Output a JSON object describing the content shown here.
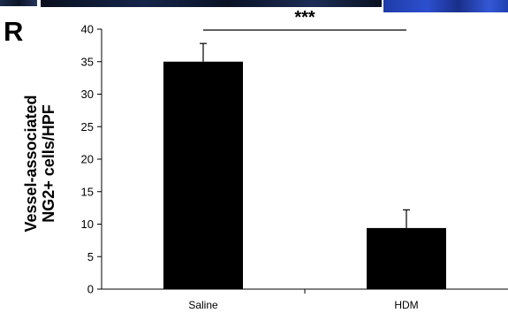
{
  "panel_label": "R",
  "chart_data": {
    "type": "bar",
    "categories": [
      "Saline",
      "HDM"
    ],
    "values": [
      35.0,
      9.4
    ],
    "errors": [
      2.8,
      2.8
    ],
    "ylabel_lines": [
      "Vessel-associated",
      "NG2+ cells/HPF"
    ],
    "xlabel": "",
    "ylim": [
      0,
      40
    ],
    "yticks": [
      0,
      5,
      10,
      15,
      20,
      25,
      30,
      35,
      40
    ],
    "significance": "***",
    "bar_color": "#000000",
    "grid": false
  }
}
